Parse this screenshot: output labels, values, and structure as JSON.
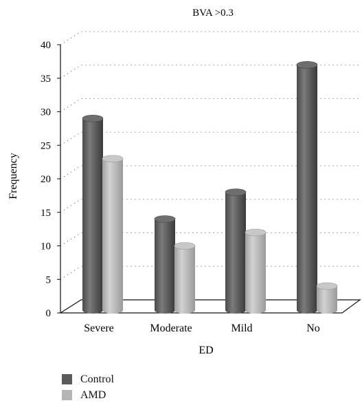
{
  "chart_data": {
    "type": "bar",
    "title": "BVA >0.3",
    "xlabel": "ED",
    "ylabel": "Frequency",
    "categories": [
      "Severe",
      "Moderate",
      "Mild",
      "No"
    ],
    "series": [
      {
        "name": "Control",
        "values": [
          29,
          14,
          18,
          37
        ],
        "color": "#5a5a5a"
      },
      {
        "name": "AMD",
        "values": [
          23,
          10,
          12,
          4
        ],
        "color": "#b4b4b4"
      }
    ],
    "ylim": [
      0,
      40
    ],
    "yticks": [
      0,
      5,
      10,
      15,
      20,
      25,
      30,
      35,
      40
    ],
    "grid": true,
    "legend_position": "bottom-left"
  }
}
